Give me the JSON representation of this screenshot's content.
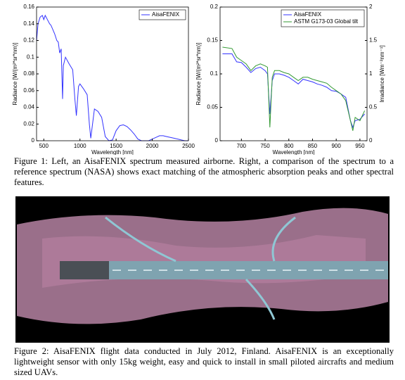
{
  "chart_data": [
    {
      "type": "line",
      "xlabel": "Wavelength [nm]",
      "ylabel": "Radiance [W/(m²*sr*nm)]",
      "x": [
        400,
        420,
        450,
        480,
        500,
        520,
        550,
        580,
        600,
        650,
        680,
        700,
        720,
        740,
        760,
        770,
        800,
        850,
        900,
        930,
        950,
        980,
        1000,
        1050,
        1100,
        1130,
        1150,
        1200,
        1250,
        1300,
        1350,
        1400,
        1450,
        1500,
        1550,
        1600,
        1650,
        1700,
        1750,
        1800,
        1850,
        1950,
        2000,
        2050,
        2100,
        2150,
        2200,
        2300,
        2400,
        2450,
        2500
      ],
      "series": [
        {
          "name": "AisaFENIX",
          "color": "#3333ff",
          "values": [
            0.12,
            0.14,
            0.148,
            0.15,
            0.145,
            0.15,
            0.145,
            0.14,
            0.138,
            0.128,
            0.12,
            0.118,
            0.105,
            0.11,
            0.05,
            0.09,
            0.1,
            0.092,
            0.085,
            0.05,
            0.03,
            0.065,
            0.068,
            0.062,
            0.055,
            0.02,
            0.003,
            0.038,
            0.035,
            0.028,
            0.005,
            0,
            0.001,
            0.012,
            0.018,
            0.019,
            0.017,
            0.013,
            0.008,
            0.002,
            0,
            0,
            0.002,
            0.004,
            0.006,
            0.006,
            0.005,
            0.003,
            0.001,
            0,
            0
          ]
        }
      ],
      "xlim": [
        400,
        2500
      ],
      "xticks": [
        500,
        1000,
        1500,
        2000,
        2500
      ],
      "ylim": [
        0,
        0.16
      ],
      "yticks": [
        0,
        0.02,
        0.04,
        0.06,
        0.08,
        0.1,
        0.12,
        0.14,
        0.16
      ],
      "legend": "upper right"
    },
    {
      "type": "line",
      "xlabel": "Wavelength [nm]",
      "ylabel": "Radiance [W/(m²*sr*nm)]",
      "y2label": "Irradiance [Wm⁻²nm⁻¹]",
      "x": [
        660,
        680,
        690,
        700,
        710,
        720,
        730,
        740,
        750,
        755,
        760,
        765,
        770,
        780,
        790,
        800,
        810,
        820,
        830,
        840,
        850,
        860,
        870,
        880,
        890,
        900,
        910,
        920,
        930,
        935,
        940,
        950,
        960
      ],
      "series": [
        {
          "name": "AisaFENIX",
          "color": "#3333ff",
          "values": [
            0.13,
            0.13,
            0.118,
            0.117,
            0.11,
            0.102,
            0.108,
            0.11,
            0.105,
            0.1,
            0.04,
            0.09,
            0.1,
            0.1,
            0.098,
            0.095,
            0.09,
            0.085,
            0.092,
            0.09,
            0.088,
            0.085,
            0.083,
            0.08,
            0.075,
            0.074,
            0.07,
            0.065,
            0.03,
            0.02,
            0.03,
            0.032,
            0.04
          ]
        },
        {
          "name": "ASTM G173-03 Global tilt",
          "color": "#339933",
          "axis": "y2",
          "values": [
            1.4,
            1.38,
            1.25,
            1.2,
            1.15,
            1.05,
            1.12,
            1.15,
            1.12,
            1.1,
            0.2,
            0.95,
            1.05,
            1.05,
            1.02,
            1.0,
            0.95,
            0.9,
            0.95,
            0.95,
            0.92,
            0.9,
            0.88,
            0.86,
            0.8,
            0.75,
            0.7,
            0.6,
            0.3,
            0.15,
            0.35,
            0.3,
            0.45
          ]
        }
      ],
      "xlim": [
        655,
        965
      ],
      "xticks": [
        700,
        750,
        800,
        850,
        900,
        950
      ],
      "ylim": [
        0,
        0.2
      ],
      "yticks": [
        0,
        0.05,
        0.1,
        0.15,
        0.2
      ],
      "y2lim": [
        0,
        2
      ],
      "y2ticks": [
        0,
        0.5,
        1,
        1.5,
        2
      ],
      "legend": "upper right"
    }
  ],
  "captions": [
    "Figure 1: Left, an AisaFENIX spectrum measured airborne. Right, a comparison of the spectrum to a reference spectrum (NASA) shows exact matching of the atmospheric absorption peaks and other spectral features.",
    "Figure 2: AisaFENIX flight data conducted in July 2012, Finland. AisaFENIX is an exceptionally lightweight sensor with only 15kg weight, easy and quick to install in small piloted aircrafts and medium sized UAVs."
  ]
}
